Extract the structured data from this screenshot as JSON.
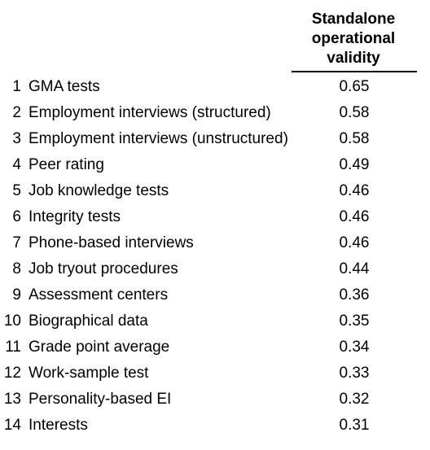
{
  "table": {
    "header": [
      "Standalone",
      "operational",
      "validity"
    ],
    "rows": [
      {
        "rank": "1",
        "label": "GMA tests",
        "value": "0.65"
      },
      {
        "rank": "2",
        "label": "Employment interviews (structured)",
        "value": "0.58"
      },
      {
        "rank": "3",
        "label": "Employment interviews (unstructured)",
        "value": "0.58"
      },
      {
        "rank": "4",
        "label": "Peer rating",
        "value": "0.49"
      },
      {
        "rank": "5",
        "label": "Job knowledge tests",
        "value": "0.46"
      },
      {
        "rank": "6",
        "label": "Integrity tests",
        "value": "0.46"
      },
      {
        "rank": "7",
        "label": "Phone-based interviews",
        "value": "0.46"
      },
      {
        "rank": "8",
        "label": "Job tryout procedures",
        "value": "0.44"
      },
      {
        "rank": "9",
        "label": "Assessment centers",
        "value": "0.36"
      },
      {
        "rank": "10",
        "label": "Biographical data",
        "value": "0.35"
      },
      {
        "rank": "11",
        "label": "Grade point average",
        "value": "0.34"
      },
      {
        "rank": "12",
        "label": "Work-sample test",
        "value": "0.33"
      },
      {
        "rank": "13",
        "label": "Personality-based EI",
        "value": "0.32"
      },
      {
        "rank": "14",
        "label": "Interests",
        "value": "0.31"
      }
    ]
  }
}
